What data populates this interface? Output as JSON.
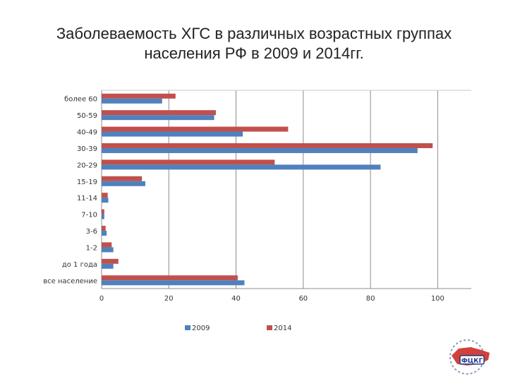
{
  "title": "Заболеваемость ХГС в различных возрастных группах населения РФ в 2009 и 2014гг.",
  "chart_data": {
    "type": "bar",
    "orientation": "horizontal",
    "categories": [
      "все население",
      "до 1 года",
      "1-2",
      "3-6",
      "7-10",
      "11-14",
      "15-19",
      "20-29",
      "30-39",
      "40-49",
      "50-59",
      "более 60"
    ],
    "series": [
      {
        "name": "2009",
        "color": "#4F81BD",
        "values": [
          42.5,
          3.5,
          3.5,
          1.5,
          0.8,
          2.0,
          13.0,
          83.0,
          94.0,
          42.0,
          33.5,
          18.0
        ]
      },
      {
        "name": "2014",
        "color": "#C0504D",
        "values": [
          40.5,
          5.0,
          3.0,
          1.2,
          0.8,
          1.8,
          12.0,
          51.5,
          98.5,
          55.5,
          34.0,
          22.0
        ]
      }
    ],
    "xlim": [
      0,
      110
    ],
    "x_ticks": [
      0,
      20,
      40,
      60,
      80,
      100
    ],
    "grid": true,
    "legend_position": "bottom"
  },
  "logo": {
    "text": "ФЦКГ"
  }
}
